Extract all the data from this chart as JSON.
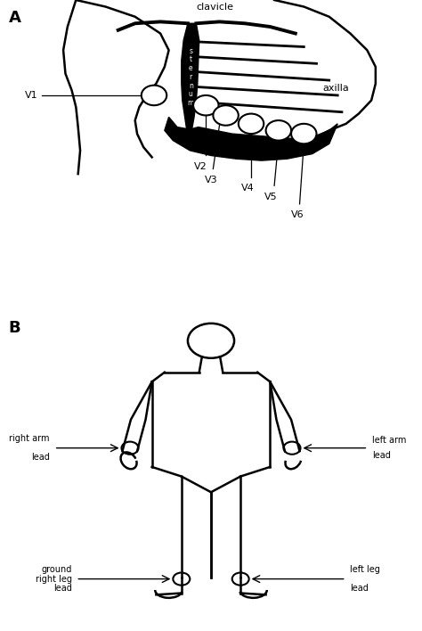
{
  "fig_width": 4.74,
  "fig_height": 7.08,
  "dpi": 100,
  "bg_color": "#ffffff",
  "line_color": "#000000",
  "panel_A_label": "A",
  "panel_B_label": "B",
  "label_clavicle": "clavicle",
  "label_sternum": "s\nt\ne\nr\nn\nu\nm",
  "label_axilla": "axilla",
  "lead_labels": [
    "V1",
    "V2",
    "V3",
    "V4",
    "V5",
    "V6"
  ]
}
